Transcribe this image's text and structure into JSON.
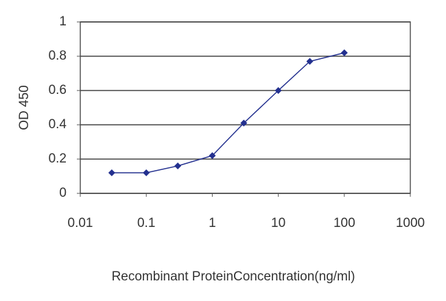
{
  "chart_data": {
    "type": "line",
    "x_label": "Recombinant ProteinConcentration(ng/ml)",
    "y_label": "OD 450",
    "x": [
      0.03,
      0.1,
      0.3,
      1,
      3,
      10,
      30,
      100
    ],
    "values": [
      0.12,
      0.12,
      0.16,
      0.22,
      0.41,
      0.6,
      0.77,
      0.82
    ],
    "color": "#23308f",
    "grid_color": "#444444",
    "xscale": "log",
    "xlim": [
      0.01,
      1000
    ],
    "xticks": [
      0.01,
      0.1,
      1,
      10,
      100,
      1000
    ],
    "ylim": [
      0,
      1
    ],
    "yticks": [
      0,
      0.2,
      0.4,
      0.6,
      0.8,
      1
    ],
    "grid": true
  }
}
